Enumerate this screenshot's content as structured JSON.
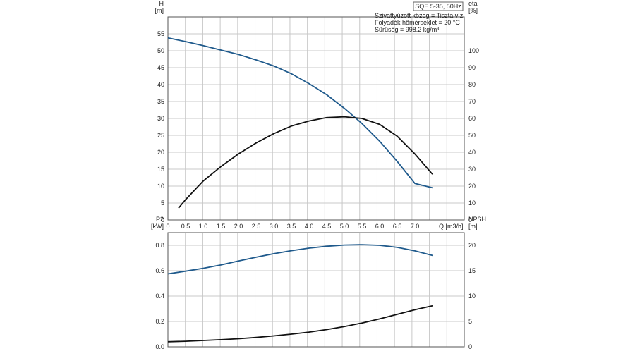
{
  "chart_data": [
    {
      "type": "line",
      "legend_label": "SQE 5-35, 50Hz",
      "annotations": [
        "Szivattyúzott közeg = Tiszta víz",
        "Folyadék hőmérséklet = 20 °C",
        "Sűrűség = 998.2 kg/m³"
      ],
      "y_left_label": [
        "H",
        "[m]"
      ],
      "y_right_label": [
        "eta",
        "[%]"
      ],
      "x_label": "Q [m3/h]",
      "x_ticks": [
        "0",
        "0.5",
        "1.0",
        "1.5",
        "2.0",
        "2.5",
        "3.0",
        "3.5",
        "4.0",
        "4.5",
        "5.0",
        "5.5",
        "6.0",
        "6.5",
        "7.0"
      ],
      "y_left_ticks": [
        "0",
        "5",
        "10",
        "15",
        "20",
        "25",
        "30",
        "35",
        "40",
        "45",
        "50",
        "55"
      ],
      "y_right_ticks": [
        "0",
        "10",
        "20",
        "30",
        "40",
        "50",
        "60",
        "70",
        "80",
        "90",
        "100"
      ],
      "xlim": [
        0,
        8.4
      ],
      "ylim_left": [
        0,
        60
      ],
      "ylim_right": [
        0,
        120
      ],
      "grid": true,
      "series": [
        {
          "axis": "left",
          "color": "#1f5a8c",
          "x": [
            0,
            0.5,
            1.0,
            1.5,
            2.0,
            2.5,
            3.0,
            3.5,
            4.0,
            4.5,
            5.0,
            5.5,
            6.0,
            6.5,
            7.0,
            7.5
          ],
          "y": [
            53.8,
            52.7,
            51.5,
            50.2,
            48.9,
            47.3,
            45.5,
            43.2,
            40.3,
            37.0,
            33.0,
            28.5,
            23.3,
            17.3,
            10.8,
            9.5
          ]
        },
        {
          "axis": "right",
          "color": "#111111",
          "x": [
            0.3,
            0.5,
            1.0,
            1.5,
            2.0,
            2.5,
            3.0,
            3.5,
            4.0,
            4.5,
            5.0,
            5.5,
            6.0,
            6.5,
            7.0,
            7.5
          ],
          "y": [
            7,
            12,
            23,
            31.5,
            39,
            45.5,
            51,
            55.5,
            58.5,
            60.5,
            61,
            60,
            56.5,
            49.5,
            39,
            27
          ]
        }
      ]
    },
    {
      "type": "line",
      "y_left_label": [
        "P2",
        "[kW]"
      ],
      "y_right_label": [
        "NPSH",
        "[m]"
      ],
      "y_left_ticks": [
        "0.0",
        "0.2",
        "0.4",
        "0.6",
        "0.8"
      ],
      "y_right_ticks": [
        "0",
        "5",
        "10",
        "15",
        "20"
      ],
      "xlim": [
        0,
        8.4
      ],
      "ylim_left": [
        0,
        0.9
      ],
      "ylim_right": [
        0,
        22.5
      ],
      "grid": true,
      "series": [
        {
          "axis": "left",
          "color": "#1f5a8c",
          "x": [
            0,
            0.5,
            1.0,
            1.5,
            2.0,
            2.5,
            3.0,
            3.5,
            4.0,
            4.5,
            5.0,
            5.5,
            6.0,
            6.5,
            7.0,
            7.5
          ],
          "y": [
            0.575,
            0.596,
            0.619,
            0.645,
            0.676,
            0.706,
            0.734,
            0.758,
            0.778,
            0.793,
            0.802,
            0.805,
            0.8,
            0.784,
            0.756,
            0.72
          ]
        },
        {
          "axis": "right",
          "color": "#111111",
          "x": [
            0,
            0.5,
            1.0,
            1.5,
            2.0,
            2.5,
            3.0,
            3.5,
            4.0,
            4.5,
            5.0,
            5.5,
            6.0,
            6.5,
            7.0,
            7.5
          ],
          "y": [
            1.0,
            1.1,
            1.25,
            1.4,
            1.6,
            1.85,
            2.15,
            2.5,
            2.9,
            3.4,
            4.0,
            4.7,
            5.5,
            6.4,
            7.3,
            8.1
          ]
        }
      ]
    }
  ]
}
